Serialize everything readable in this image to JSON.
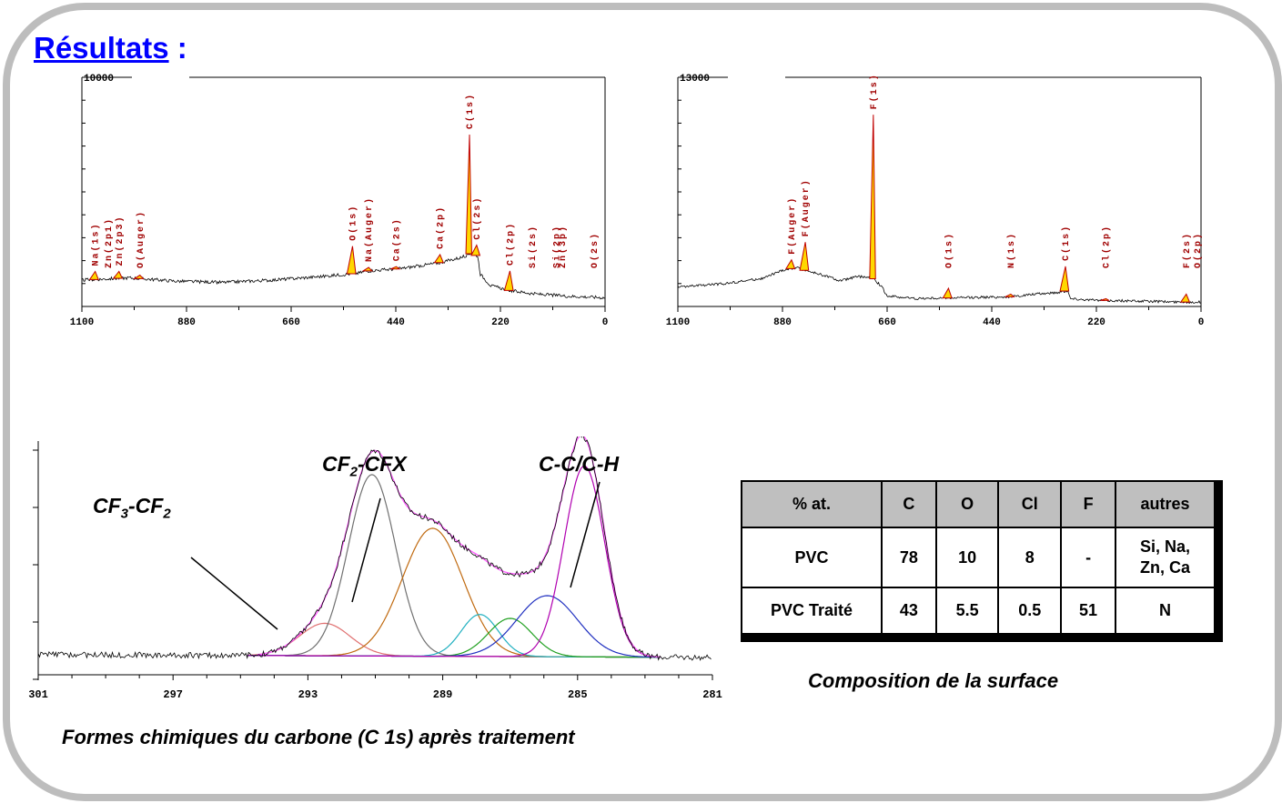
{
  "page": {
    "title": "Résultats",
    "title_suffix": " :"
  },
  "chart_data": [
    {
      "type": "line",
      "title": "",
      "xlim": [
        1100,
        0
      ],
      "ylim": [
        0,
        10000
      ],
      "y_top_label": "10000",
      "x_tick_labels": [
        "1100",
        "880",
        "660",
        "440",
        "220",
        "0"
      ],
      "x_ticks": [
        1100,
        880,
        660,
        440,
        220,
        0
      ],
      "baseline": [
        [
          1100,
          1150
        ],
        [
          1000,
          1250
        ],
        [
          900,
          1100
        ],
        [
          800,
          1050
        ],
        [
          700,
          1150
        ],
        [
          600,
          1300
        ],
        [
          520,
          1450
        ],
        [
          500,
          1550
        ],
        [
          430,
          1650
        ],
        [
          350,
          1900
        ],
        [
          300,
          2150
        ],
        [
          280,
          2350
        ],
        [
          268,
          2200
        ],
        [
          262,
          1400
        ],
        [
          240,
          900
        ],
        [
          200,
          700
        ],
        [
          150,
          550
        ],
        [
          80,
          450
        ],
        [
          20,
          400
        ],
        [
          0,
          380
        ]
      ],
      "peaks": [
        {
          "label": "Na(1s)",
          "x": 1072,
          "h": 350
        },
        {
          "label": "Zn(2p1)",
          "x": 1045,
          "h": 0
        },
        {
          "label": "Zn(2p3)",
          "x": 1022,
          "h": 300
        },
        {
          "label": "O(Auger)",
          "x": 978,
          "h": 150
        },
        {
          "label": "O(1s)",
          "x": 531,
          "h": 1200
        },
        {
          "label": "Na(Auger)",
          "x": 497,
          "h": 150
        },
        {
          "label": "Ca(2s)",
          "x": 439,
          "h": 100
        },
        {
          "label": "Ca(2p)",
          "x": 347,
          "h": 350
        },
        {
          "label": "C(1s)",
          "x": 285,
          "h": 5200
        },
        {
          "label": "Cl(2s)",
          "x": 270,
          "h": 450
        },
        {
          "label": "Cl(2p)",
          "x": 200,
          "h": 850
        },
        {
          "label": "Si(2s)",
          "x": 153,
          "h": 0
        },
        {
          "label": "Si(2p)",
          "x": 102,
          "h": 0
        },
        {
          "label": "Zn(3p)",
          "x": 90,
          "h": 0
        },
        {
          "label": "O(2s)",
          "x": 23,
          "h": 0
        }
      ]
    },
    {
      "type": "line",
      "title": "",
      "xlim": [
        1100,
        0
      ],
      "ylim": [
        0,
        13000
      ],
      "y_top_label": "13000",
      "x_tick_labels": [
        "1100",
        "880",
        "660",
        "440",
        "220",
        "0"
      ],
      "x_ticks": [
        1100,
        880,
        660,
        440,
        220,
        0
      ],
      "baseline": [
        [
          1100,
          1100
        ],
        [
          1000,
          1300
        ],
        [
          920,
          1600
        ],
        [
          880,
          2050
        ],
        [
          850,
          2200
        ],
        [
          820,
          1950
        ],
        [
          790,
          1750
        ],
        [
          760,
          1450
        ],
        [
          720,
          1700
        ],
        [
          690,
          1600
        ],
        [
          672,
          1150
        ],
        [
          660,
          600
        ],
        [
          600,
          450
        ],
        [
          500,
          500
        ],
        [
          400,
          550
        ],
        [
          350,
          700
        ],
        [
          300,
          800
        ],
        [
          280,
          900
        ],
        [
          275,
          450
        ],
        [
          220,
          350
        ],
        [
          120,
          300
        ],
        [
          40,
          250
        ],
        [
          0,
          250
        ]
      ],
      "peaks": [
        {
          "label": "F(Auger)",
          "x": 861,
          "h": 500
        },
        {
          "label": "F(Auger)",
          "x": 832,
          "h": 1600
        },
        {
          "label": "F(1s)",
          "x": 689,
          "h": 9300
        },
        {
          "label": "O(1s)",
          "x": 531,
          "h": 550
        },
        {
          "label": "N(1s)",
          "x": 400,
          "h": 150
        },
        {
          "label": "C(1s)",
          "x": 285,
          "h": 1400
        },
        {
          "label": "Cl(2p)",
          "x": 200,
          "h": 100
        },
        {
          "label": "F(2s)",
          "x": 31,
          "h": 450
        },
        {
          "label": "O(2p)",
          "x": 8,
          "h": 0
        }
      ]
    },
    {
      "type": "line",
      "title": "",
      "xlim": [
        301,
        281
      ],
      "x_tick_labels": [
        "301",
        "297",
        "293",
        "289",
        "285",
        "281"
      ],
      "x_ticks": [
        301,
        297,
        293,
        289,
        285,
        281
      ],
      "series": [
        {
          "component": "CF3-CF2",
          "color": "#e07070",
          "center": 292.5,
          "height": 0.17,
          "width": 0.75
        },
        {
          "component": "CF2-CFX",
          "color": "#707070",
          "center": 291.1,
          "height": 0.95,
          "width": 0.7
        },
        {
          "component": "CF2-CFX",
          "color": "#c06a10",
          "center": 289.3,
          "height": 0.67,
          "width": 0.9
        },
        {
          "component": "",
          "color": "#20b0c0",
          "center": 287.9,
          "height": 0.22,
          "width": 0.55
        },
        {
          "component": "",
          "color": "#20a020",
          "center": 287.0,
          "height": 0.2,
          "width": 0.65
        },
        {
          "component": "",
          "color": "#2030c0",
          "center": 285.9,
          "height": 0.32,
          "width": 0.9
        },
        {
          "component": "C-C/C-H",
          "color": "#b000b0",
          "center": 284.8,
          "height": 1.0,
          "width": 0.6
        }
      ],
      "labels": [
        {
          "text": "CF",
          "sub": "3",
          "text2": "-CF",
          "sub2": "2"
        },
        {
          "text": "CF",
          "sub": "2",
          "text2": "-CFX",
          "sub2": ""
        },
        {
          "text": "C-C/C-H",
          "sub": "",
          "text2": "",
          "sub2": ""
        }
      ],
      "caption": "Formes chimiques du carbone (C 1s) après traitement"
    },
    {
      "type": "table",
      "headers": [
        "% at.",
        "C",
        "O",
        "Cl",
        "F",
        "autres"
      ],
      "rows": [
        [
          "PVC",
          "78",
          "10",
          "8",
          "-",
          "Si, Na,\nZn, Ca"
        ],
        [
          "PVC Traité",
          "43",
          "5.5",
          "0.5",
          "51",
          "N"
        ]
      ],
      "caption": "Composition de la surface"
    }
  ],
  "colors": {
    "peak_line": "#c00000",
    "peak_fill": "#ffd700",
    "label": "#a00000",
    "frame": "#bdbdbd",
    "title": "#0000ff",
    "table_header": "#bfbfbf"
  }
}
